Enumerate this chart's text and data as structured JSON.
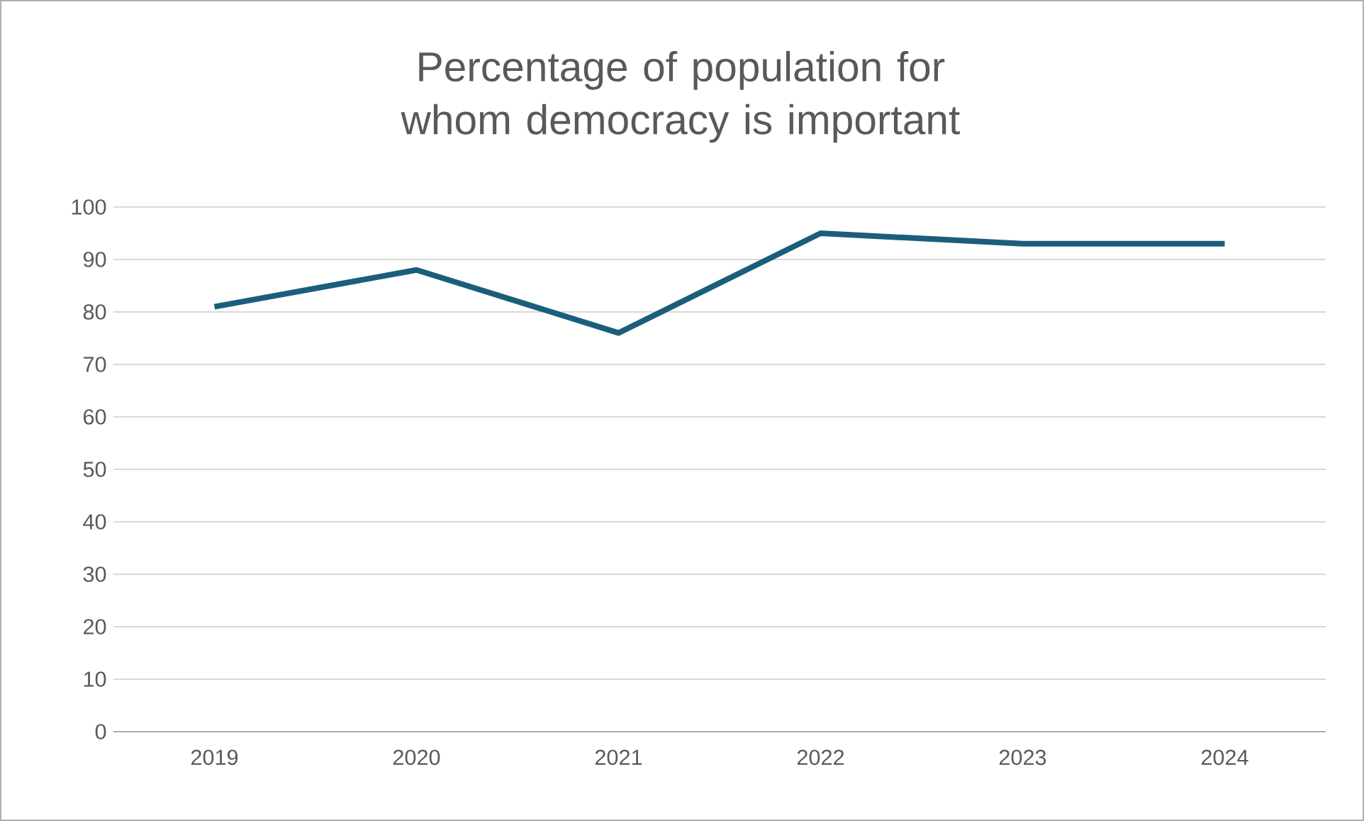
{
  "chart_data": {
    "type": "line",
    "title": "Percentage of population for whom democracy is important",
    "categories": [
      "2019",
      "2020",
      "2021",
      "2022",
      "2023",
      "2024"
    ],
    "series": [
      {
        "color": "#1b5e7b",
        "values": [
          81,
          88,
          76,
          95,
          93,
          93
        ]
      }
    ],
    "ylim": [
      0,
      100
    ],
    "yticks": [
      0,
      10,
      20,
      30,
      40,
      50,
      60,
      70,
      80,
      90,
      100
    ],
    "grid": "y",
    "marker": "none",
    "line_style": "solid"
  }
}
